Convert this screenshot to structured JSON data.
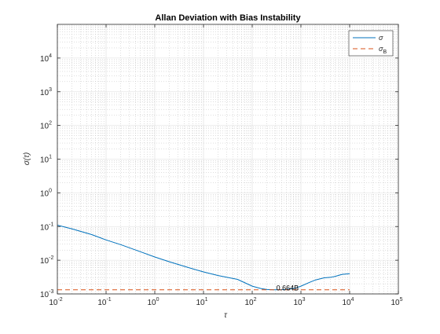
{
  "chart_data": {
    "type": "line",
    "title": "Allan Deviation with Bias Instability",
    "xlabel": "τ",
    "ylabel": "σ(τ)",
    "x_scale": "log",
    "y_scale": "log",
    "xlim": [
      0.01,
      100000
    ],
    "ylim": [
      0.001,
      100000
    ],
    "x_ticks": [
      {
        "base": "10",
        "exp": "-2",
        "value": 0.01
      },
      {
        "base": "10",
        "exp": "-1",
        "value": 0.1
      },
      {
        "base": "10",
        "exp": "0",
        "value": 1
      },
      {
        "base": "10",
        "exp": "1",
        "value": 10
      },
      {
        "base": "10",
        "exp": "2",
        "value": 100
      },
      {
        "base": "10",
        "exp": "3",
        "value": 1000
      },
      {
        "base": "10",
        "exp": "4",
        "value": 10000
      },
      {
        "base": "10",
        "exp": "5",
        "value": 100000
      }
    ],
    "y_ticks": [
      {
        "base": "10",
        "exp": "-3",
        "value": 0.001
      },
      {
        "base": "10",
        "exp": "-2",
        "value": 0.01
      },
      {
        "base": "10",
        "exp": "-1",
        "value": 0.1
      },
      {
        "base": "10",
        "exp": "0",
        "value": 1
      },
      {
        "base": "10",
        "exp": "1",
        "value": 10
      },
      {
        "base": "10",
        "exp": "2",
        "value": 100
      },
      {
        "base": "10",
        "exp": "3",
        "value": 1000
      },
      {
        "base": "10",
        "exp": "4",
        "value": 10000
      }
    ],
    "grid": true,
    "minor_grid": true,
    "legend_position": "top-right",
    "series": [
      {
        "name": "σ",
        "color": "#0072BD",
        "style": "solid",
        "x": [
          0.01,
          0.02,
          0.05,
          0.1,
          0.2,
          0.5,
          1,
          2,
          5,
          10,
          20,
          50,
          100,
          150,
          200,
          300,
          500,
          800,
          1000,
          1500,
          2000,
          3000,
          4000,
          5000,
          7000,
          10000
        ],
        "y": [
          0.11,
          0.085,
          0.058,
          0.04,
          0.029,
          0.018,
          0.0125,
          0.009,
          0.006,
          0.0045,
          0.0035,
          0.0027,
          0.0017,
          0.00145,
          0.00135,
          0.00133,
          0.00135,
          0.0015,
          0.0017,
          0.0022,
          0.0026,
          0.003,
          0.0031,
          0.0033,
          0.0038,
          0.004
        ]
      },
      {
        "name": "σ_B",
        "legend_base": "σ",
        "legend_sub": "B",
        "color": "#D95319",
        "style": "dashed",
        "x": [
          0.01,
          10000
        ],
        "y": [
          0.00133,
          0.00133
        ]
      }
    ],
    "annotations": [
      {
        "text": "0.664B",
        "x": 300,
        "y": 0.00133
      }
    ]
  }
}
